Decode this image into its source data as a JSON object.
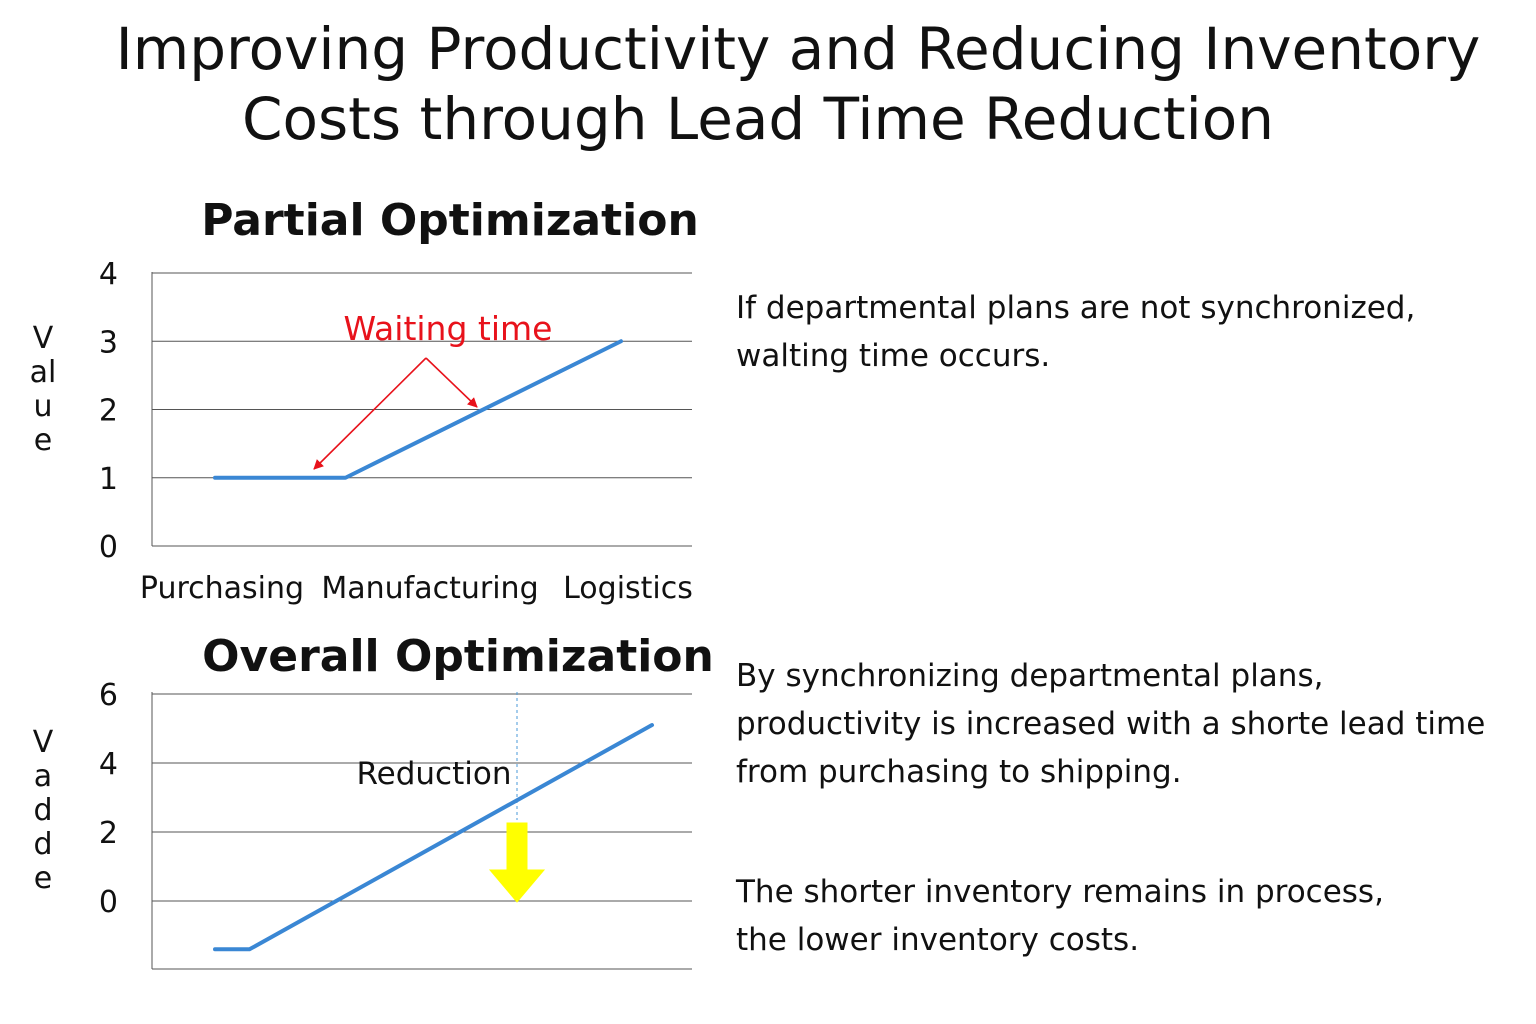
{
  "title": {
    "line1": "Improving Productivity and Reducing Inventory",
    "line2": "Costs through Lead Time Reduction"
  },
  "notes": {
    "partial": "If departmental plans are not synchronized,\nwalting time occurs.",
    "overall": "By synchronizing departmental plans,\nproductivity is increased with a shorte lead time\nfrom purchasing to shipping.",
    "inventory": "The shorter inventory remains in process,\nthe lower inventory costs."
  },
  "colors": {
    "line": "#3a87d4",
    "annotation": "#e8121b",
    "arrow_fill": "#ffff00",
    "grid": "#555555"
  },
  "chart_data": [
    {
      "type": "line",
      "title": "Partial Optimization",
      "ylabel": "Value",
      "xlabel": "",
      "categories": [
        "Purchasing",
        "Manufacturing",
        "Logistics"
      ],
      "yticks": [
        0,
        1,
        2,
        3,
        4
      ],
      "ylim": [
        0,
        4
      ],
      "grid": true,
      "series": [
        {
          "x": [
            0,
            0.55,
            0.9,
            2.8
          ],
          "y": [
            1,
            1,
            1,
            3
          ]
        }
      ],
      "annotations": [
        {
          "text": "Waiting time",
          "color": "annotation"
        }
      ]
    },
    {
      "type": "line",
      "title": "Overall Optimization",
      "ylabel": "Vadde",
      "xlabel": "",
      "categories": [],
      "yticks": [
        0,
        2,
        4,
        6
      ],
      "ylim": [
        -2,
        6
      ],
      "grid": true,
      "series": [
        {
          "x": [
            0,
            0.15,
            1.9
          ],
          "y": [
            -1.4,
            -1.4,
            5.1
          ]
        }
      ],
      "annotations": [
        {
          "text": "Reduction",
          "arrow": "down"
        }
      ]
    }
  ]
}
